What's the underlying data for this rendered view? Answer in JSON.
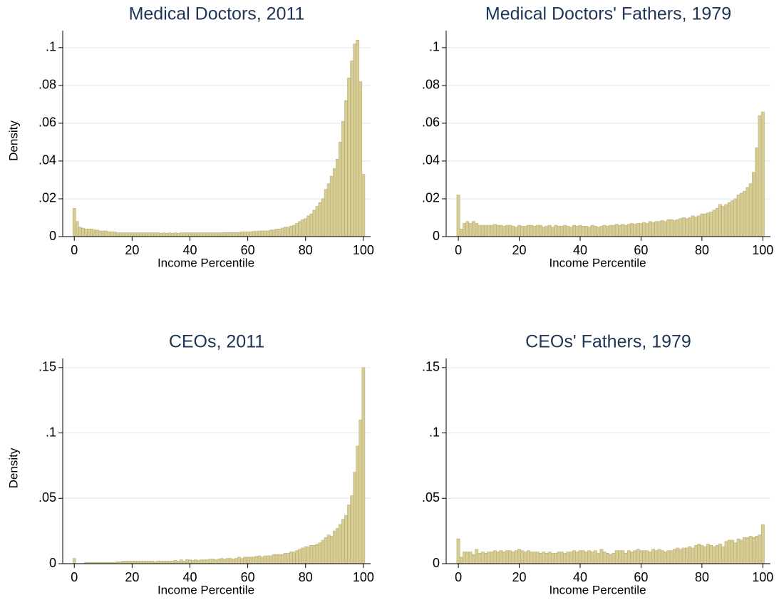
{
  "chart_data": [
    {
      "type": "histogram",
      "title": "Medical Doctors, 2011",
      "xlabel": "Income Percentile",
      "ylabel": "Density",
      "color": "#d6cd95",
      "edgecolor": "#b8ad74",
      "grid": true,
      "xlim": [
        -4,
        102.5
      ],
      "ylim": [
        0,
        0.109
      ],
      "xticks": [
        0,
        20,
        40,
        60,
        80,
        100
      ],
      "yticks": [
        0,
        {
          "value": 0.02,
          "label": ".02"
        },
        {
          "value": 0.04,
          "label": ".04"
        },
        {
          "value": 0.06,
          "label": ".06"
        },
        {
          "value": 0.08,
          "label": ".08"
        },
        {
          "value": 0.1,
          "label": ".1"
        }
      ],
      "bins": [
        -0.5,
        0.5,
        1.5,
        2.5,
        3.5,
        4.5,
        5.5,
        6.5,
        7.5,
        8.5,
        9.5,
        10.5,
        11.5,
        12.5,
        13.5,
        14.5,
        15.5,
        16.5,
        17.5,
        18.5,
        19.5,
        20.5,
        21.5,
        22.5,
        23.5,
        24.5,
        25.5,
        26.5,
        27.5,
        28.5,
        29.5,
        30.5,
        31.5,
        32.5,
        33.5,
        34.5,
        35.5,
        36.5,
        37.5,
        38.5,
        39.5,
        40.5,
        41.5,
        42.5,
        43.5,
        44.5,
        45.5,
        46.5,
        47.5,
        48.5,
        49.5,
        50.5,
        51.5,
        52.5,
        53.5,
        54.5,
        55.5,
        56.5,
        57.5,
        58.5,
        59.5,
        60.5,
        61.5,
        62.5,
        63.5,
        64.5,
        65.5,
        66.5,
        67.5,
        68.5,
        69.5,
        70.5,
        71.5,
        72.5,
        73.5,
        74.5,
        75.5,
        76.5,
        77.5,
        78.5,
        79.5,
        80.5,
        81.5,
        82.5,
        83.5,
        84.5,
        85.5,
        86.5,
        87.5,
        88.5,
        89.5,
        90.5,
        91.5,
        92.5,
        93.5,
        94.5,
        95.5,
        96.5,
        97.5,
        98.5,
        99.5,
        100.5
      ],
      "values": [
        0.015,
        0.008,
        0.005,
        0.0045,
        0.004,
        0.004,
        0.004,
        0.0035,
        0.0035,
        0.003,
        0.003,
        0.003,
        0.0025,
        0.0025,
        0.0025,
        0.002,
        0.002,
        0.002,
        0.002,
        0.002,
        0.002,
        0.002,
        0.002,
        0.002,
        0.002,
        0.002,
        0.002,
        0.002,
        0.002,
        0.002,
        0.0018,
        0.002,
        0.0018,
        0.002,
        0.0018,
        0.002,
        0.0018,
        0.002,
        0.002,
        0.002,
        0.002,
        0.002,
        0.002,
        0.002,
        0.002,
        0.002,
        0.002,
        0.002,
        0.002,
        0.002,
        0.002,
        0.002,
        0.0022,
        0.0022,
        0.0022,
        0.0022,
        0.0022,
        0.0022,
        0.0025,
        0.0025,
        0.0025,
        0.0025,
        0.0028,
        0.0028,
        0.003,
        0.003,
        0.003,
        0.003,
        0.0035,
        0.0035,
        0.004,
        0.004,
        0.0045,
        0.005,
        0.005,
        0.0055,
        0.006,
        0.007,
        0.008,
        0.009,
        0.0095,
        0.011,
        0.012,
        0.014,
        0.016,
        0.018,
        0.02,
        0.025,
        0.028,
        0.032,
        0.036,
        0.041,
        0.05,
        0.061,
        0.072,
        0.084,
        0.093,
        0.102,
        0.104,
        0.082,
        0.033
      ]
    },
    {
      "type": "histogram",
      "title": "Medical Doctors' Fathers, 1979",
      "xlabel": "Income Percentile",
      "color": "#d6cd95",
      "edgecolor": "#b8ad74",
      "grid": true,
      "xlim": [
        -4,
        102.5
      ],
      "ylim": [
        0,
        0.109
      ],
      "xticks": [
        0,
        20,
        40,
        60,
        80,
        100
      ],
      "yticks": [
        0,
        {
          "value": 0.02,
          "label": ".02"
        },
        {
          "value": 0.04,
          "label": ".04"
        },
        {
          "value": 0.06,
          "label": ".06"
        },
        {
          "value": 0.08,
          "label": ".08"
        },
        {
          "value": 0.1,
          "label": ".1"
        }
      ],
      "bins": [
        -0.5,
        0.5,
        1.5,
        2.5,
        3.5,
        4.5,
        5.5,
        6.5,
        7.5,
        8.5,
        9.5,
        10.5,
        11.5,
        12.5,
        13.5,
        14.5,
        15.5,
        16.5,
        17.5,
        18.5,
        19.5,
        20.5,
        21.5,
        22.5,
        23.5,
        24.5,
        25.5,
        26.5,
        27.5,
        28.5,
        29.5,
        30.5,
        31.5,
        32.5,
        33.5,
        34.5,
        35.5,
        36.5,
        37.5,
        38.5,
        39.5,
        40.5,
        41.5,
        42.5,
        43.5,
        44.5,
        45.5,
        46.5,
        47.5,
        48.5,
        49.5,
        50.5,
        51.5,
        52.5,
        53.5,
        54.5,
        55.5,
        56.5,
        57.5,
        58.5,
        59.5,
        60.5,
        61.5,
        62.5,
        63.5,
        64.5,
        65.5,
        66.5,
        67.5,
        68.5,
        69.5,
        70.5,
        71.5,
        72.5,
        73.5,
        74.5,
        75.5,
        76.5,
        77.5,
        78.5,
        79.5,
        80.5,
        81.5,
        82.5,
        83.5,
        84.5,
        85.5,
        86.5,
        87.5,
        88.5,
        89.5,
        90.5,
        91.5,
        92.5,
        93.5,
        94.5,
        95.5,
        96.5,
        97.5,
        98.5,
        99.5,
        100.5
      ],
      "values": [
        0.022,
        0.004,
        0.007,
        0.008,
        0.007,
        0.008,
        0.007,
        0.006,
        0.006,
        0.006,
        0.006,
        0.006,
        0.0065,
        0.006,
        0.006,
        0.0055,
        0.006,
        0.006,
        0.0055,
        0.005,
        0.006,
        0.0055,
        0.0055,
        0.006,
        0.006,
        0.0055,
        0.006,
        0.006,
        0.005,
        0.0055,
        0.006,
        0.005,
        0.006,
        0.0055,
        0.0055,
        0.006,
        0.0055,
        0.005,
        0.006,
        0.0055,
        0.006,
        0.0055,
        0.0055,
        0.005,
        0.006,
        0.0055,
        0.005,
        0.0055,
        0.006,
        0.0055,
        0.006,
        0.006,
        0.0065,
        0.006,
        0.0065,
        0.006,
        0.0065,
        0.007,
        0.0065,
        0.007,
        0.007,
        0.0075,
        0.007,
        0.008,
        0.0075,
        0.008,
        0.008,
        0.0085,
        0.008,
        0.009,
        0.009,
        0.0085,
        0.009,
        0.0095,
        0.01,
        0.0095,
        0.01,
        0.011,
        0.0105,
        0.011,
        0.012,
        0.012,
        0.0125,
        0.013,
        0.014,
        0.015,
        0.017,
        0.016,
        0.017,
        0.018,
        0.019,
        0.02,
        0.022,
        0.023,
        0.024,
        0.026,
        0.028,
        0.034,
        0.047,
        0.064,
        0.066
      ]
    },
    {
      "type": "histogram",
      "title": "CEOs, 2011",
      "xlabel": "Income Percentile",
      "ylabel": "Density",
      "color": "#d6cd95",
      "edgecolor": "#b8ad74",
      "grid": true,
      "xlim": [
        -4,
        102.5
      ],
      "ylim": [
        0,
        0.157
      ],
      "xticks": [
        0,
        20,
        40,
        60,
        80,
        100
      ],
      "yticks": [
        0,
        {
          "value": 0.05,
          "label": ".05"
        },
        {
          "value": 0.1,
          "label": ".1"
        },
        {
          "value": 0.15,
          "label": ".15"
        }
      ],
      "bins": [
        -0.5,
        0.5,
        1.5,
        2.5,
        3.5,
        4.5,
        5.5,
        6.5,
        7.5,
        8.5,
        9.5,
        10.5,
        11.5,
        12.5,
        13.5,
        14.5,
        15.5,
        16.5,
        17.5,
        18.5,
        19.5,
        20.5,
        21.5,
        22.5,
        23.5,
        24.5,
        25.5,
        26.5,
        27.5,
        28.5,
        29.5,
        30.5,
        31.5,
        32.5,
        33.5,
        34.5,
        35.5,
        36.5,
        37.5,
        38.5,
        39.5,
        40.5,
        41.5,
        42.5,
        43.5,
        44.5,
        45.5,
        46.5,
        47.5,
        48.5,
        49.5,
        50.5,
        51.5,
        52.5,
        53.5,
        54.5,
        55.5,
        56.5,
        57.5,
        58.5,
        59.5,
        60.5,
        61.5,
        62.5,
        63.5,
        64.5,
        65.5,
        66.5,
        67.5,
        68.5,
        69.5,
        70.5,
        71.5,
        72.5,
        73.5,
        74.5,
        75.5,
        76.5,
        77.5,
        78.5,
        79.5,
        80.5,
        81.5,
        82.5,
        83.5,
        84.5,
        85.5,
        86.5,
        87.5,
        88.5,
        89.5,
        90.5,
        91.5,
        92.5,
        93.5,
        94.5,
        95.5,
        96.5,
        97.5,
        98.5,
        99.5,
        100.5
      ],
      "values": [
        0.004,
        0,
        0,
        0,
        0.001,
        0.001,
        0.001,
        0.001,
        0.001,
        0.001,
        0.001,
        0.001,
        0.001,
        0.001,
        0.001,
        0.0015,
        0.0015,
        0.002,
        0.002,
        0.002,
        0.002,
        0.002,
        0.002,
        0.002,
        0.002,
        0.002,
        0.002,
        0.002,
        0.0015,
        0.002,
        0.002,
        0.002,
        0.002,
        0.002,
        0.002,
        0.0025,
        0.002,
        0.003,
        0.002,
        0.003,
        0.003,
        0.0025,
        0.003,
        0.0025,
        0.003,
        0.003,
        0.003,
        0.0035,
        0.0035,
        0.003,
        0.0035,
        0.004,
        0.0035,
        0.004,
        0.004,
        0.0035,
        0.004,
        0.005,
        0.004,
        0.005,
        0.005,
        0.005,
        0.005,
        0.0055,
        0.006,
        0.005,
        0.006,
        0.006,
        0.006,
        0.007,
        0.007,
        0.007,
        0.007,
        0.008,
        0.008,
        0.009,
        0.009,
        0.01,
        0.011,
        0.012,
        0.013,
        0.013,
        0.014,
        0.014,
        0.015,
        0.016,
        0.018,
        0.02,
        0.022,
        0.021,
        0.025,
        0.027,
        0.03,
        0.034,
        0.037,
        0.045,
        0.052,
        0.07,
        0.09,
        0.11,
        0.15
      ]
    },
    {
      "type": "histogram",
      "title": "CEOs' Fathers, 1979",
      "xlabel": "Income Percentile",
      "color": "#d6cd95",
      "edgecolor": "#b8ad74",
      "grid": true,
      "xlim": [
        -4,
        102.5
      ],
      "ylim": [
        0,
        0.157
      ],
      "xticks": [
        0,
        20,
        40,
        60,
        80,
        100
      ],
      "yticks": [
        0,
        {
          "value": 0.05,
          "label": ".05"
        },
        {
          "value": 0.1,
          "label": ".1"
        },
        {
          "value": 0.15,
          "label": ".15"
        }
      ],
      "bins": [
        -0.5,
        0.5,
        1.5,
        2.5,
        3.5,
        4.5,
        5.5,
        6.5,
        7.5,
        8.5,
        9.5,
        10.5,
        11.5,
        12.5,
        13.5,
        14.5,
        15.5,
        16.5,
        17.5,
        18.5,
        19.5,
        20.5,
        21.5,
        22.5,
        23.5,
        24.5,
        25.5,
        26.5,
        27.5,
        28.5,
        29.5,
        30.5,
        31.5,
        32.5,
        33.5,
        34.5,
        35.5,
        36.5,
        37.5,
        38.5,
        39.5,
        40.5,
        41.5,
        42.5,
        43.5,
        44.5,
        45.5,
        46.5,
        47.5,
        48.5,
        49.5,
        50.5,
        51.5,
        52.5,
        53.5,
        54.5,
        55.5,
        56.5,
        57.5,
        58.5,
        59.5,
        60.5,
        61.5,
        62.5,
        63.5,
        64.5,
        65.5,
        66.5,
        67.5,
        68.5,
        69.5,
        70.5,
        71.5,
        72.5,
        73.5,
        74.5,
        75.5,
        76.5,
        77.5,
        78.5,
        79.5,
        80.5,
        81.5,
        82.5,
        83.5,
        84.5,
        85.5,
        86.5,
        87.5,
        88.5,
        89.5,
        90.5,
        91.5,
        92.5,
        93.5,
        94.5,
        95.5,
        96.5,
        97.5,
        98.5,
        99.5,
        100.5
      ],
      "values": [
        0.019,
        0.005,
        0.009,
        0.009,
        0.009,
        0.007,
        0.011,
        0.008,
        0.009,
        0.008,
        0.009,
        0.009,
        0.01,
        0.009,
        0.01,
        0.009,
        0.01,
        0.01,
        0.009,
        0.01,
        0.011,
        0.01,
        0.009,
        0.01,
        0.009,
        0.009,
        0.009,
        0.008,
        0.009,
        0.008,
        0.009,
        0.008,
        0.008,
        0.009,
        0.009,
        0.008,
        0.009,
        0.009,
        0.01,
        0.009,
        0.01,
        0.01,
        0.009,
        0.01,
        0.009,
        0.01,
        0.008,
        0.011,
        0.009,
        0.008,
        0.007,
        0.008,
        0.01,
        0.01,
        0.01,
        0.008,
        0.01,
        0.009,
        0.01,
        0.011,
        0.01,
        0.01,
        0.01,
        0.009,
        0.011,
        0.01,
        0.011,
        0.01,
        0.009,
        0.01,
        0.01,
        0.011,
        0.012,
        0.011,
        0.012,
        0.012,
        0.013,
        0.012,
        0.014,
        0.015,
        0.014,
        0.013,
        0.015,
        0.014,
        0.013,
        0.014,
        0.015,
        0.013,
        0.017,
        0.018,
        0.018,
        0.016,
        0.019,
        0.018,
        0.02,
        0.02,
        0.021,
        0.02,
        0.021,
        0.022,
        0.03
      ]
    }
  ]
}
